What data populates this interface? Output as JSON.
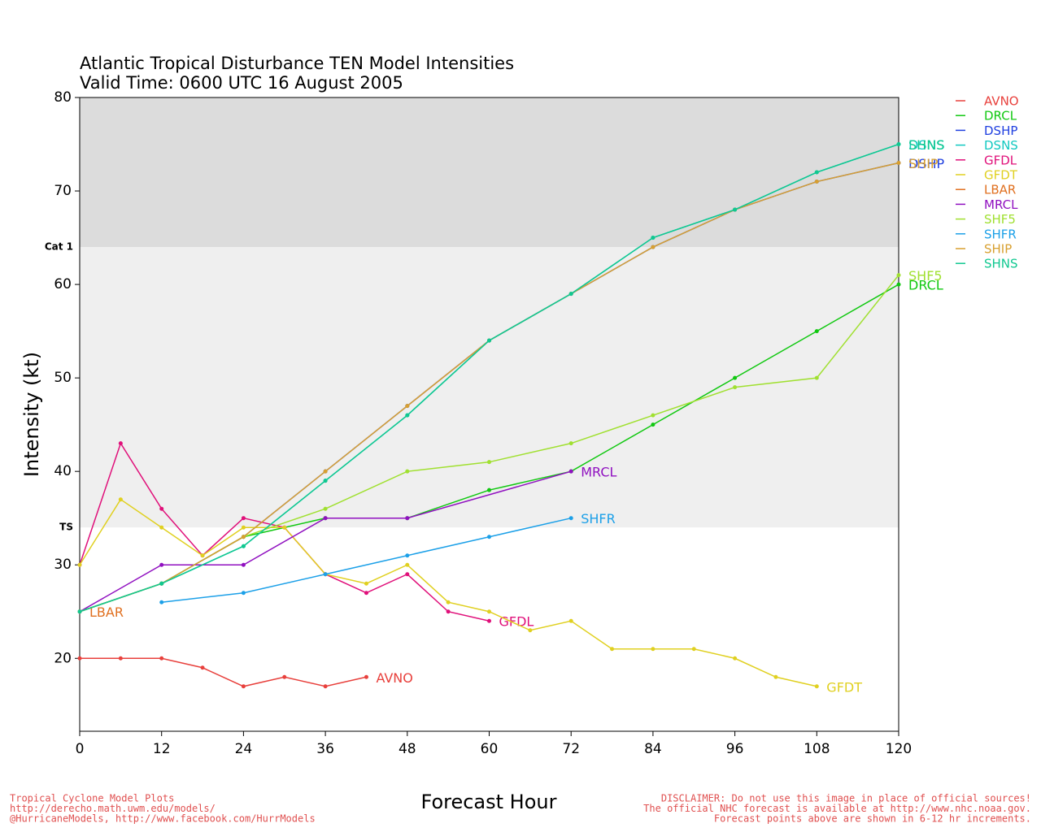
{
  "chart_data": {
    "type": "line",
    "title": "Atlantic Tropical Disturbance TEN Model Intensities",
    "subtitle": "Valid Time: 0600 UTC 16 August 2005",
    "x_label": "Forecast Hour",
    "y_label": "Intensity (kt)",
    "xlim": [
      0,
      120
    ],
    "xticks": [
      0,
      12,
      24,
      36,
      48,
      60,
      72,
      84,
      96,
      108,
      120
    ],
    "ylim": [
      12.2,
      80
    ],
    "yticks": [
      20,
      30,
      40,
      50,
      60,
      70,
      80
    ],
    "bands": [
      {
        "label": "Cat 1",
        "value": 64,
        "color": "#dcdcdc"
      },
      {
        "label": "TS",
        "value": 34,
        "color": "#efefef"
      }
    ],
    "series": [
      {
        "name": "AVNO",
        "color": "#e8403c",
        "x": [
          0,
          6,
          12,
          18,
          24,
          30,
          36,
          42
        ],
        "values": [
          20,
          20,
          20,
          19,
          17,
          18,
          17,
          18
        ]
      },
      {
        "name": "DRCL",
        "color": "#10c810",
        "x": [
          0,
          12,
          24,
          36,
          48,
          60,
          72,
          84,
          96,
          108,
          120
        ],
        "values": [
          25,
          28,
          33,
          35,
          35,
          38,
          40,
          45,
          50,
          55,
          60
        ]
      },
      {
        "name": "DSHP",
        "color": "#2040e0",
        "x": [
          0,
          12,
          24,
          36,
          48,
          60,
          72,
          84,
          96,
          108,
          120
        ],
        "values": [
          25,
          28,
          33,
          40,
          47,
          54,
          59,
          64,
          68,
          71,
          73
        ]
      },
      {
        "name": "DSNS",
        "color": "#10c8c0",
        "x": [
          0,
          12,
          24,
          36,
          48,
          60,
          72,
          84,
          96,
          108,
          120
        ],
        "values": [
          25,
          28,
          32,
          39,
          46,
          54,
          59,
          65,
          68,
          72,
          75
        ]
      },
      {
        "name": "GFDL",
        "color": "#e0107a",
        "x": [
          0,
          6,
          12,
          18,
          24,
          30,
          36,
          42,
          48,
          54,
          60
        ],
        "values": [
          30,
          43,
          36,
          31,
          35,
          34,
          29,
          27,
          29,
          25,
          24
        ]
      },
      {
        "name": "GFDT",
        "color": "#e0d020",
        "x": [
          0,
          6,
          12,
          18,
          24,
          30,
          36,
          42,
          48,
          54,
          60,
          66,
          72,
          78,
          84,
          90,
          96,
          102,
          108
        ],
        "values": [
          30,
          37,
          34,
          31,
          34,
          34,
          29,
          28,
          30,
          26,
          25,
          23,
          24,
          21,
          21,
          21,
          20,
          18,
          17
        ]
      },
      {
        "name": "LBAR",
        "color": "#e07020",
        "x": [
          0
        ],
        "values": [
          25
        ]
      },
      {
        "name": "MRCL",
        "color": "#9010c0",
        "x": [
          0,
          12,
          24,
          36,
          48,
          72
        ],
        "values": [
          25,
          30,
          30,
          35,
          35,
          40
        ]
      },
      {
        "name": "SHF5",
        "color": "#a0e030",
        "x": [
          0,
          12,
          24,
          36,
          48,
          60,
          72,
          84,
          96,
          108,
          120
        ],
        "values": [
          25,
          28,
          33,
          36,
          40,
          41,
          43,
          46,
          49,
          50,
          61
        ]
      },
      {
        "name": "SHFR",
        "color": "#1ca0e8",
        "x": [
          12,
          24,
          36,
          48,
          60,
          72
        ],
        "values": [
          26,
          27,
          29,
          31,
          33,
          35
        ]
      },
      {
        "name": "SHIP",
        "color": "#d8a030",
        "x": [
          0,
          12,
          24,
          36,
          48,
          60,
          72,
          84,
          96,
          108,
          120
        ],
        "values": [
          25,
          28,
          33,
          40,
          47,
          54,
          59,
          64,
          68,
          71,
          73
        ]
      },
      {
        "name": "SHNS",
        "color": "#10c890",
        "x": [
          0,
          12,
          24,
          36,
          48,
          60,
          72,
          84,
          96,
          108,
          120
        ],
        "values": [
          25,
          28,
          32,
          39,
          46,
          54,
          59,
          65,
          68,
          72,
          75
        ]
      }
    ],
    "footer_left": [
      "Tropical Cyclone Model Plots",
      "http://derecho.math.uwm.edu/models/",
      "@HurricaneModels, http://www.facebook.com/HurrModels"
    ],
    "footer_right": [
      "DISCLAIMER: Do not use this image in place of official sources!",
      "The official NHC forecast is available at http://www.nhc.noaa.gov.",
      "Forecast points above are shown in 6-12 hr increments."
    ]
  }
}
